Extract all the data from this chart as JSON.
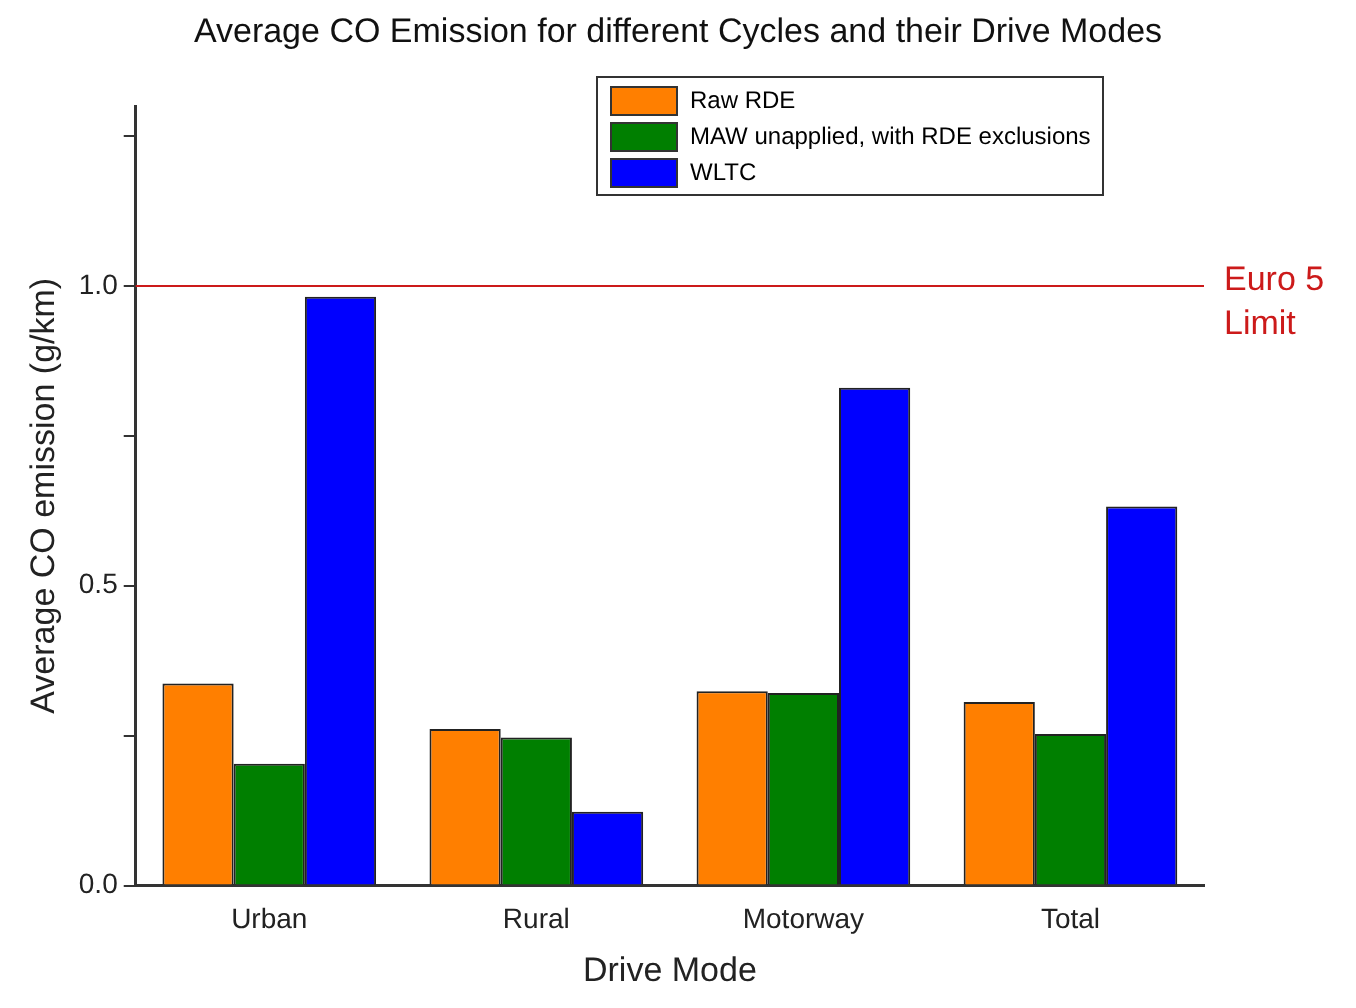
{
  "chart_data": {
    "type": "bar",
    "title": "Average CO Emission for different Cycles and their Drive Modes",
    "xlabel": "Drive Mode",
    "ylabel": "Average CO emission (g/km)",
    "categories": [
      "Urban",
      "Rural",
      "Motorway",
      "Total"
    ],
    "series": [
      {
        "name": "Raw RDE",
        "color": "#ff7f00",
        "values": [
          0.337,
          0.261,
          0.324,
          0.306
        ]
      },
      {
        "name": "MAW unapplied, with RDE exclusions",
        "color": "#007f00",
        "values": [
          0.203,
          0.247,
          0.321,
          0.253
        ]
      },
      {
        "name": "WLTC",
        "color": "#0000ff",
        "values": [
          0.982,
          0.123,
          0.83,
          0.632
        ]
      }
    ],
    "ylim": [
      0,
      1.3
    ],
    "yticks": [
      {
        "value": 0,
        "label": "0.0"
      },
      {
        "value": 0.25,
        "label": null
      },
      {
        "value": 0.5,
        "label": "0.5"
      },
      {
        "value": 0.75,
        "label": null
      },
      {
        "value": 1,
        "label": "1.0"
      },
      {
        "value": 1.25,
        "label": null
      }
    ],
    "ref_lines": [
      {
        "axis": "y",
        "value": 1,
        "label": "Euro 5 Limit",
        "color": "#cc1a1a"
      }
    ],
    "grid": false,
    "legend": "top right"
  }
}
